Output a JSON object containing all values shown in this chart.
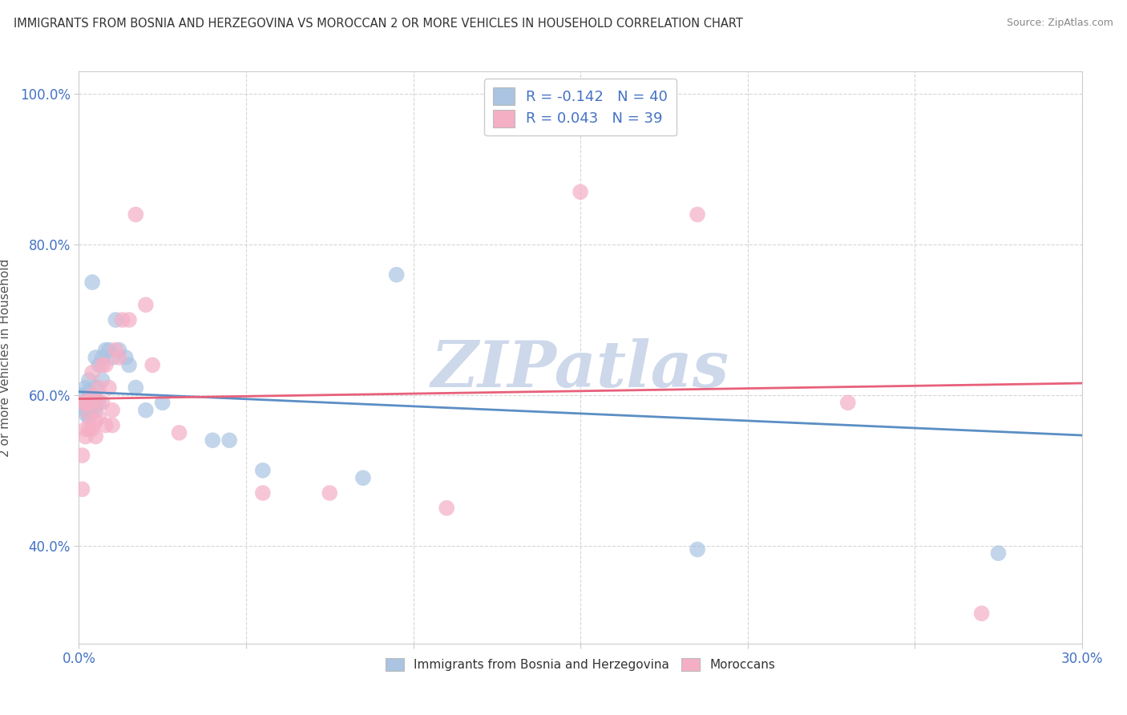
{
  "title": "IMMIGRANTS FROM BOSNIA AND HERZEGOVINA VS MOROCCAN 2 OR MORE VEHICLES IN HOUSEHOLD CORRELATION CHART",
  "source": "Source: ZipAtlas.com",
  "ylabel": "2 or more Vehicles in Household",
  "xlim": [
    0.0,
    0.3
  ],
  "ylim": [
    0.27,
    1.03
  ],
  "xticks": [
    0.0,
    0.05,
    0.1,
    0.15,
    0.2,
    0.25,
    0.3
  ],
  "xticklabels": [
    "0.0%",
    "",
    "",
    "",
    "",
    "",
    "30.0%"
  ],
  "yticks": [
    0.4,
    0.6,
    0.8,
    1.0
  ],
  "yticklabels": [
    "40.0%",
    "60.0%",
    "80.0%",
    "100.0%"
  ],
  "blue_color": "#aac4e2",
  "pink_color": "#f5afc5",
  "blue_line_color": "#5b8ec4",
  "pink_line_color": "#e8607a",
  "blue_R": -0.142,
  "blue_N": 40,
  "pink_R": 0.043,
  "pink_N": 39,
  "blue_scatter_x": [
    0.001,
    0.001,
    0.002,
    0.002,
    0.002,
    0.002,
    0.003,
    0.003,
    0.003,
    0.003,
    0.003,
    0.004,
    0.004,
    0.004,
    0.004,
    0.005,
    0.005,
    0.005,
    0.005,
    0.006,
    0.006,
    0.007,
    0.007,
    0.008,
    0.009,
    0.01,
    0.011,
    0.012,
    0.014,
    0.015,
    0.017,
    0.02,
    0.025,
    0.04,
    0.045,
    0.055,
    0.085,
    0.095,
    0.185,
    0.275
  ],
  "blue_scatter_y": [
    0.59,
    0.6,
    0.575,
    0.58,
    0.59,
    0.61,
    0.57,
    0.58,
    0.595,
    0.605,
    0.62,
    0.58,
    0.59,
    0.6,
    0.75,
    0.58,
    0.595,
    0.61,
    0.65,
    0.59,
    0.64,
    0.62,
    0.65,
    0.66,
    0.66,
    0.65,
    0.7,
    0.66,
    0.65,
    0.64,
    0.61,
    0.58,
    0.59,
    0.54,
    0.54,
    0.5,
    0.49,
    0.76,
    0.395,
    0.39
  ],
  "pink_scatter_x": [
    0.001,
    0.001,
    0.001,
    0.002,
    0.002,
    0.002,
    0.003,
    0.003,
    0.003,
    0.004,
    0.004,
    0.004,
    0.005,
    0.005,
    0.005,
    0.006,
    0.006,
    0.007,
    0.007,
    0.008,
    0.008,
    0.009,
    0.01,
    0.01,
    0.011,
    0.012,
    0.013,
    0.015,
    0.017,
    0.02,
    0.022,
    0.03,
    0.055,
    0.075,
    0.11,
    0.15,
    0.185,
    0.23,
    0.27
  ],
  "pink_scatter_y": [
    0.475,
    0.52,
    0.59,
    0.545,
    0.555,
    0.59,
    0.555,
    0.575,
    0.59,
    0.555,
    0.6,
    0.63,
    0.545,
    0.565,
    0.59,
    0.57,
    0.61,
    0.59,
    0.64,
    0.56,
    0.64,
    0.61,
    0.56,
    0.58,
    0.66,
    0.65,
    0.7,
    0.7,
    0.84,
    0.72,
    0.64,
    0.55,
    0.47,
    0.47,
    0.45,
    0.87,
    0.84,
    0.59,
    0.31
  ],
  "watermark": "ZIPatlas",
  "watermark_color": "#cdd8ea",
  "background_color": "#ffffff",
  "grid_color": "#cccccc"
}
